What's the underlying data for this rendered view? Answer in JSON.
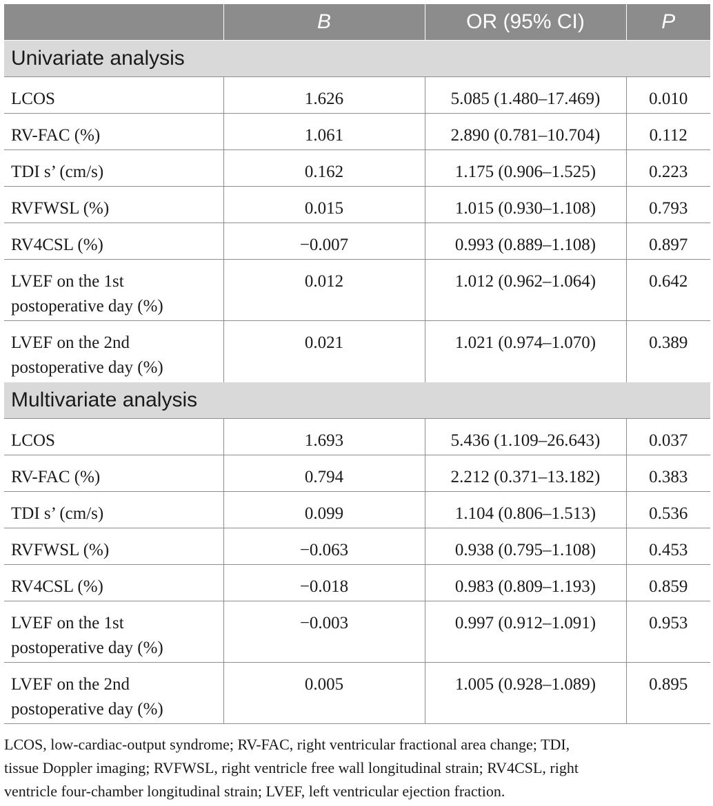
{
  "header": {
    "col1": "",
    "col2": "B",
    "col3": "OR (95% CI)",
    "col4": "P"
  },
  "sections": [
    {
      "title": "Univariate analysis",
      "rows": [
        {
          "label": "LCOS",
          "b": "1.626",
          "or": "5.085 (1.480–17.469)",
          "p": "0.010"
        },
        {
          "label": "RV-FAC (%)",
          "b": "1.061",
          "or": "2.890 (0.781–10.704)",
          "p": "0.112"
        },
        {
          "label": "TDI s’ (cm/s)",
          "b": "0.162",
          "or": "1.175 (0.906–1.525)",
          "p": "0.223"
        },
        {
          "label": "RVFWSL (%)",
          "b": "0.015",
          "or": "1.015 (0.930–1.108)",
          "p": "0.793"
        },
        {
          "label": "RV4CSL (%)",
          "b": "−0.007",
          "or": "0.993 (0.889–1.108)",
          "p": "0.897"
        },
        {
          "label_line1": "LVEF on the 1st",
          "label_line2": "postoperative day (%)",
          "b": "0.012",
          "or": "1.012 (0.962–1.064)",
          "p": "0.642"
        },
        {
          "label_line1": "LVEF on the 2nd",
          "label_line2": "postoperative day (%)",
          "b": "0.021",
          "or": "1.021 (0.974–1.070)",
          "p": "0.389"
        }
      ]
    },
    {
      "title": "Multivariate analysis",
      "rows": [
        {
          "label": "LCOS",
          "b": "1.693",
          "or": "5.436 (1.109–26.643)",
          "p": "0.037"
        },
        {
          "label": "RV-FAC (%)",
          "b": "0.794",
          "or": "2.212 (0.371–13.182)",
          "p": "0.383"
        },
        {
          "label": "TDI s’ (cm/s)",
          "b": "0.099",
          "or": "1.104 (0.806–1.513)",
          "p": "0.536"
        },
        {
          "label": "RVFWSL (%)",
          "b": "−0.063",
          "or": "0.938 (0.795–1.108)",
          "p": "0.453"
        },
        {
          "label": "RV4CSL (%)",
          "b": "−0.018",
          "or": "0.983 (0.809–1.193)",
          "p": "0.859"
        },
        {
          "label_line1": "LVEF on the 1st",
          "label_line2": "postoperative day (%)",
          "b": "−0.003",
          "or": "0.997 (0.912–1.091)",
          "p": "0.953"
        },
        {
          "label_line1": "LVEF on the 2nd",
          "label_line2": "postoperative day (%)",
          "b": "0.005",
          "or": "1.005 (0.928–1.089)",
          "p": "0.895"
        }
      ]
    }
  ],
  "footnote": {
    "line1": "LCOS, low-cardiac-output syndrome; RV-FAC, right ventricular fractional area change; TDI,",
    "line2": "tissue Doppler imaging; RVFWSL, right ventricle free wall longitudinal strain; RV4CSL, right",
    "line3": "ventricle four-chamber longitudinal strain; LVEF, left ventricular ejection fraction."
  }
}
